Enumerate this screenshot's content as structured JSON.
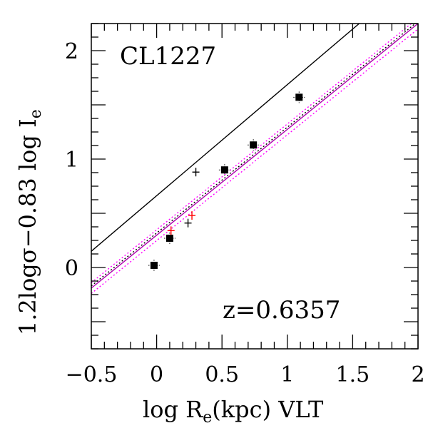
{
  "chart_data": {
    "type": "scatter",
    "xlabel_main": "log R",
    "xlabel_sub": "e",
    "xlabel_tail": "(kpc) VLT",
    "ylabel_main": "1.2logσ−0.83 log I",
    "ylabel_sub": "e",
    "xlim": [
      -0.5,
      2.0
    ],
    "ylim": [
      -0.75,
      2.25
    ],
    "x_ticks": [
      -0.5,
      0,
      0.5,
      1,
      1.5,
      2
    ],
    "x_tick_labels": [
      "−0.5",
      "0",
      "0.5",
      "1",
      "1.5",
      "2"
    ],
    "y_ticks": [
      0,
      1,
      2
    ],
    "y_tick_labels": [
      "0",
      "1",
      "2"
    ],
    "annotations": {
      "cluster": "CL1227",
      "redshift": "z=0.6357"
    },
    "filled_squares": [
      {
        "x": -0.02,
        "y": 0.02
      },
      {
        "x": 0.1,
        "y": 0.27
      },
      {
        "x": 0.52,
        "y": 0.9
      },
      {
        "x": 0.74,
        "y": 1.13
      },
      {
        "x": 1.09,
        "y": 1.57
      }
    ],
    "plus_black": [
      {
        "x": 0.3,
        "y": 0.88
      },
      {
        "x": 0.24,
        "y": 0.41
      }
    ],
    "plus_red": [
      {
        "x": 0.27,
        "y": 0.48
      },
      {
        "x": 0.11,
        "y": 0.34
      }
    ],
    "lines": [
      {
        "style": "solid",
        "color": "#000000",
        "x": [
          -0.5,
          1.55
        ],
        "y": [
          0.15,
          2.25
        ]
      },
      {
        "style": "solid",
        "color": "#b000b0",
        "x": [
          -0.5,
          2.0
        ],
        "y": [
          -0.19,
          2.25
        ]
      },
      {
        "style": "dotted",
        "color": "#000000",
        "x": [
          -0.5,
          2.0
        ],
        "y": [
          -0.17,
          2.27
        ]
      },
      {
        "style": "dotted",
        "color": "#ff00ff",
        "x": [
          -0.5,
          2.0
        ],
        "y": [
          -0.14,
          2.3
        ]
      },
      {
        "style": "dotted",
        "color": "#ff00ff",
        "x": [
          -0.5,
          2.0
        ],
        "y": [
          -0.24,
          2.2
        ]
      }
    ],
    "colors": {
      "red": "#ff0000",
      "magenta": "#ff00ff",
      "purple": "#b000b0",
      "black": "#000000"
    }
  }
}
